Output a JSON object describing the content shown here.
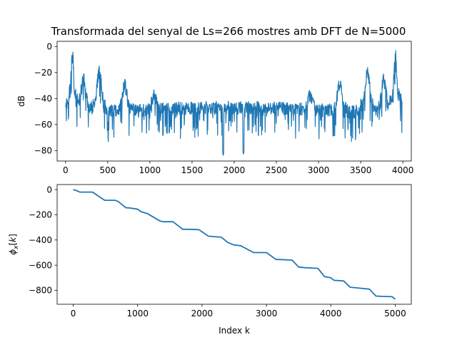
{
  "chart_data": [
    {
      "type": "line",
      "title": "Transformada del senyal de Ls=266 mostres amb DFT de N=5000",
      "xlabel": "",
      "ylabel": "dB",
      "xlim": [
        -100,
        4100
      ],
      "ylim": [
        -88,
        4
      ],
      "xticks": [
        0,
        500,
        1000,
        1500,
        2000,
        2500,
        3000,
        3500,
        4000
      ],
      "yticks": [
        0,
        -20,
        -40,
        -60,
        -80
      ],
      "color": "#1f77b4",
      "x_range": [
        0,
        3990
      ],
      "peaks": [
        {
          "x": 80,
          "y": 0
        },
        {
          "x": 215,
          "y": -20
        },
        {
          "x": 400,
          "y": -14
        },
        {
          "x": 700,
          "y": -25
        },
        {
          "x": 1050,
          "y": -33
        },
        {
          "x": 2900,
          "y": -33
        },
        {
          "x": 3250,
          "y": -25
        },
        {
          "x": 3580,
          "y": -14
        },
        {
          "x": 3775,
          "y": -20
        },
        {
          "x": 3910,
          "y": 0
        }
      ],
      "floor_db": [
        -48,
        -42
      ],
      "minimum": {
        "x": 1870,
        "y": -84
      },
      "grid": false
    },
    {
      "type": "line",
      "title": "",
      "xlabel": "Index k",
      "ylabel": "ϕ_x[k]",
      "xlim": [
        -250,
        5250
      ],
      "ylim": [
        -910,
        40
      ],
      "xticks": [
        0,
        1000,
        2000,
        3000,
        4000,
        5000
      ],
      "yticks": [
        0,
        -200,
        -400,
        -600,
        -800
      ],
      "color": "#1f77b4",
      "x": [
        0,
        60,
        100,
        300,
        480,
        500,
        650,
        700,
        820,
        860,
        1000,
        1050,
        1150,
        1350,
        1400,
        1550,
        1700,
        1800,
        1950,
        2000,
        2100,
        2300,
        2400,
        2500,
        2600,
        2800,
        2900,
        3000,
        3150,
        3200,
        3400,
        3500,
        3600,
        3800,
        3900,
        4000,
        4050,
        4200,
        4300,
        4500,
        4600,
        4700,
        4800,
        4950,
        5000
      ],
      "y": [
        0,
        -10,
        -20,
        -20,
        -82,
        -85,
        -85,
        -95,
        -145,
        -145,
        -155,
        -175,
        -190,
        -250,
        -255,
        -255,
        -315,
        -315,
        -318,
        -335,
        -370,
        -378,
        -420,
        -440,
        -445,
        -500,
        -500,
        -500,
        -555,
        -555,
        -560,
        -615,
        -620,
        -625,
        -690,
        -700,
        -720,
        -725,
        -775,
        -785,
        -790,
        -845,
        -848,
        -850,
        -870
      ],
      "grid": false
    }
  ]
}
